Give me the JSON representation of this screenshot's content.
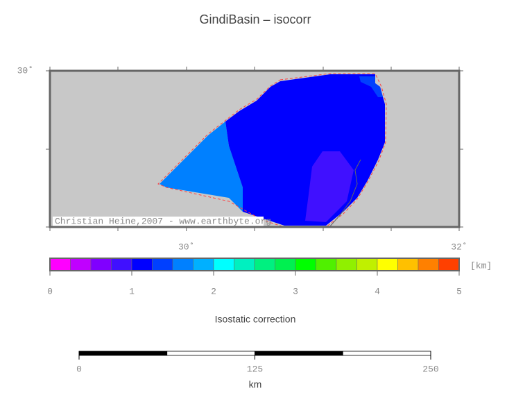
{
  "title": "GindiBasin – isocorr",
  "map": {
    "xlim": [
      29,
      32
    ],
    "ylim": [
      28.85,
      30
    ],
    "xticks": [
      {
        "value": 30,
        "label": "30˚"
      },
      {
        "value": 32,
        "label": "32˚"
      }
    ],
    "yticks": [
      {
        "value": 30,
        "label": "30˚"
      }
    ],
    "credit": "Christian Heine,2007 - www.earthbyte.org"
  },
  "colorbar": {
    "range": [
      0,
      5
    ],
    "ticks": [
      0,
      1,
      2,
      3,
      4,
      5
    ],
    "unit": "[km]",
    "label": "Isostatic correction",
    "colors": [
      "#ff00ff",
      "#c000ff",
      "#8000ff",
      "#4010ff",
      "#0000ff",
      "#0040ff",
      "#0080ff",
      "#00b0ff",
      "#00ffff",
      "#00f0c0",
      "#00f080",
      "#00f050",
      "#00ff00",
      "#50f000",
      "#90f000",
      "#c0f000",
      "#ffff00",
      "#ffc000",
      "#ff8000",
      "#ff4000"
    ]
  },
  "scalebar": {
    "range": [
      0,
      250
    ],
    "ticks": [
      0,
      125,
      250
    ],
    "unit": "km"
  }
}
